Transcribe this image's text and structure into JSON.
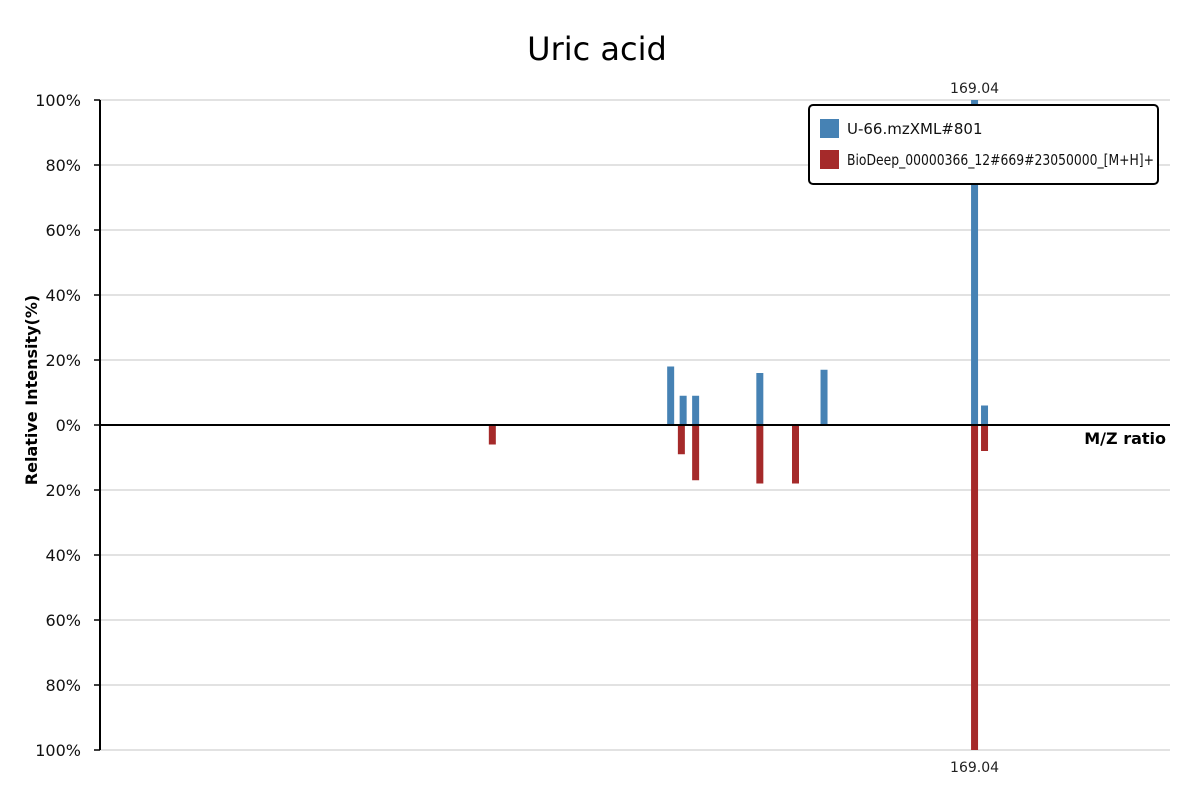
{
  "chart_data": {
    "type": "bar",
    "title": "Uric acid",
    "xlabel": "M/Z ratio",
    "ylabel": "Relative Intensity(%)",
    "ylim": [
      -100,
      100
    ],
    "grid": true,
    "legend_position": "top-right",
    "y_tick_labels": [
      "100%",
      "80%",
      "60%",
      "40%",
      "20%",
      "0%",
      "20%",
      "40%",
      "60%",
      "80%",
      "100%"
    ],
    "series": [
      {
        "name": "U-66.mzXML#801",
        "color": "#4682b4",
        "peaks": [
          {
            "mz": 152.0,
            "intensity": 18
          },
          {
            "mz": 152.7,
            "intensity": 9
          },
          {
            "mz": 153.4,
            "intensity": 9
          },
          {
            "mz": 157.0,
            "intensity": 16
          },
          {
            "mz": 160.6,
            "intensity": 17
          },
          {
            "mz": 169.04,
            "intensity": 100
          },
          {
            "mz": 169.6,
            "intensity": 6
          }
        ]
      },
      {
        "name": "BioDeep_00000366_12#669#23050000_[M+H]+",
        "color": "#a52a2a",
        "peaks": [
          {
            "mz": 142.0,
            "intensity": 6
          },
          {
            "mz": 152.6,
            "intensity": 9
          },
          {
            "mz": 153.4,
            "intensity": 17
          },
          {
            "mz": 157.0,
            "intensity": 18
          },
          {
            "mz": 159.0,
            "intensity": 18
          },
          {
            "mz": 169.04,
            "intensity": 100
          },
          {
            "mz": 169.6,
            "intensity": 8
          }
        ]
      }
    ],
    "annotations": [
      {
        "series": 0,
        "text": "169.04"
      },
      {
        "series": 1,
        "text": "169.04"
      }
    ]
  }
}
